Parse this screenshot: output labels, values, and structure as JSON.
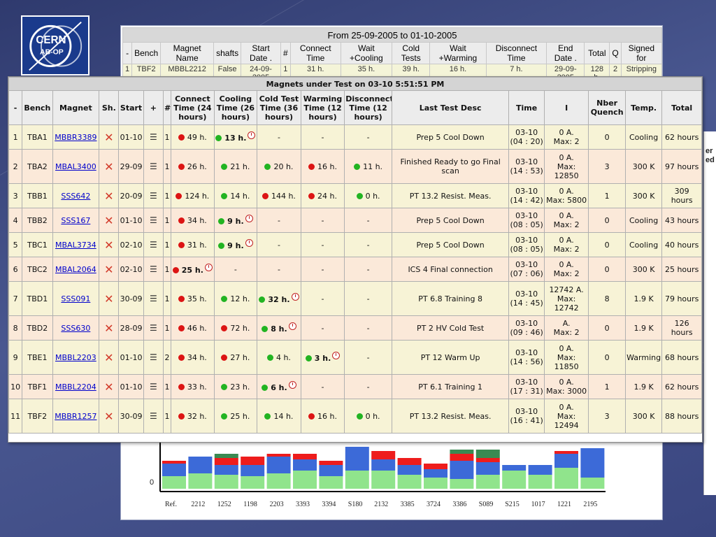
{
  "logo": {
    "line1": "CERN",
    "line2": "AB-OP"
  },
  "bg_table": {
    "title": "From 25-09-2005 to 01-10-2005",
    "headers": [
      "-",
      "Bench",
      "Magnet Name",
      "shafts",
      "Start Date .",
      "#",
      "Connect Time",
      "Wait +Cooling",
      "Cold Tests",
      "Wait +Warming",
      "Disconnect Time",
      "End Date .",
      "Total",
      "Q",
      "Signed for"
    ],
    "row": [
      "1",
      "TBF2",
      "MBBL2212",
      "False",
      "24-09-2005",
      "1",
      "31 h.",
      "35 h.",
      "39 h.",
      "16 h.",
      "7 h.",
      "29-09-2005",
      "128 h.",
      "2",
      "Stripping"
    ]
  },
  "right_window": {
    "line1": "er",
    "line2": "ed"
  },
  "bg_chart": {
    "zero_label": "0",
    "categories": [
      "Ref.",
      "2212",
      "1252",
      "1198",
      "2203",
      "3393",
      "3394",
      "S180",
      "2132",
      "3385",
      "3724",
      "3386",
      "S089",
      "S215",
      "1017",
      "1221",
      "2195"
    ]
  },
  "main": {
    "title": "Magnets under Test on 03-10 5:51:51 PM",
    "headers": {
      "idx": "-",
      "bench": "Bench",
      "magnet": "Magnet",
      "sh": "Sh.",
      "start": "Start",
      "plus": "+",
      "hash": "#",
      "connect": "Connect Time (24 hours)",
      "cooling": "Cooling Time (26 hours)",
      "coldtest": "Cold Test Time (36 hours)",
      "warming": "Warming Time (12 hours)",
      "disconnect": "Disconnect Time (12 hours)",
      "lasttest": "Last Test Desc",
      "time": "Time",
      "i": "I",
      "nber_quench": "Nber Quench",
      "temp": "Temp.",
      "total": "Total"
    },
    "icons": {
      "shaft": "x-mark-icon",
      "history": "history-icon",
      "status": "status-dot-icon",
      "clock": "clock-icon"
    },
    "colors": {
      "red": "#dc1414",
      "green": "#22b422"
    },
    "rows": [
      {
        "idx": "1",
        "bench": "TBA1",
        "magnet": "MBBR3389",
        "start": "01-10",
        "count": "1",
        "connect": {
          "status": "red",
          "text": "49 h."
        },
        "cooling": {
          "status": "green",
          "text": "13 h.",
          "current": true
        },
        "coldtest": {
          "text": "-"
        },
        "warming": {
          "text": "-"
        },
        "disconnect": {
          "text": "-"
        },
        "desc": "Prep 5 Cool Down",
        "time_date": "03-10",
        "time_hm": "(04 : 20)",
        "i_line1": "0 A.",
        "i_line2": "Max: 2",
        "quench": "0",
        "temp": "Cooling",
        "total": "62 hours"
      },
      {
        "idx": "2",
        "bench": "TBA2",
        "magnet": "MBAL3400",
        "start": "29-09",
        "count": "1",
        "connect": {
          "status": "red",
          "text": "26 h."
        },
        "cooling": {
          "status": "green",
          "text": "21 h."
        },
        "coldtest": {
          "status": "green",
          "text": "20 h."
        },
        "warming": {
          "status": "red",
          "text": "16 h."
        },
        "disconnect": {
          "status": "green",
          "text": "11 h."
        },
        "desc": "Finished Ready to go Final scan",
        "time_date": "03-10",
        "time_hm": "(14 : 53)",
        "i_line1": "0 A.",
        "i_line2": "Max:",
        "i_line3": "12850",
        "quench": "3",
        "temp": "300 K",
        "total": "97 hours"
      },
      {
        "idx": "3",
        "bench": "TBB1",
        "magnet": "SSS642",
        "start": "20-09",
        "count": "1",
        "connect": {
          "status": "red",
          "text": "124 h."
        },
        "cooling": {
          "status": "green",
          "text": "14 h."
        },
        "coldtest": {
          "status": "red",
          "text": "144 h."
        },
        "warming": {
          "status": "red",
          "text": "24 h."
        },
        "disconnect": {
          "status": "green",
          "text": "0 h."
        },
        "desc": "PT 13.2 Resist. Meas.",
        "time_date": "03-10",
        "time_hm": "(14 : 42)",
        "i_line1": "0 A.",
        "i_line2": "Max: 5800",
        "quench": "1",
        "temp": "300 K",
        "total": "309 hours"
      },
      {
        "idx": "4",
        "bench": "TBB2",
        "magnet": "SSS167",
        "start": "01-10",
        "count": "1",
        "connect": {
          "status": "red",
          "text": "34 h."
        },
        "cooling": {
          "status": "green",
          "text": "9 h.",
          "current": true
        },
        "coldtest": {
          "text": "-"
        },
        "warming": {
          "text": "-"
        },
        "disconnect": {
          "text": "-"
        },
        "desc": "Prep 5 Cool Down",
        "time_date": "03-10",
        "time_hm": "(08 : 05)",
        "i_line1": "0 A.",
        "i_line2": "Max: 2",
        "quench": "0",
        "temp": "Cooling",
        "total": "43 hours"
      },
      {
        "idx": "5",
        "bench": "TBC1",
        "magnet": "MBAL3734",
        "start": "02-10",
        "count": "1",
        "connect": {
          "status": "red",
          "text": "31 h."
        },
        "cooling": {
          "status": "green",
          "text": "9 h.",
          "current": true
        },
        "coldtest": {
          "text": "-"
        },
        "warming": {
          "text": "-"
        },
        "disconnect": {
          "text": "-"
        },
        "desc": "Prep 5 Cool Down",
        "time_date": "03-10",
        "time_hm": "(08 : 05)",
        "i_line1": "0 A.",
        "i_line2": "Max: 2",
        "quench": "0",
        "temp": "Cooling",
        "total": "40 hours"
      },
      {
        "idx": "6",
        "bench": "TBC2",
        "magnet": "MBAL2064",
        "start": "02-10",
        "count": "1",
        "connect": {
          "status": "red",
          "text": "25 h.",
          "current": true
        },
        "cooling": {
          "text": "-"
        },
        "coldtest": {
          "text": "-"
        },
        "warming": {
          "text": "-"
        },
        "disconnect": {
          "text": "-"
        },
        "desc": "ICS 4 Final connection",
        "time_date": "03-10",
        "time_hm": "(07 : 06)",
        "i_line1": "0 A.",
        "i_line2": "Max: 2",
        "quench": "0",
        "temp": "300 K",
        "total": "25 hours"
      },
      {
        "idx": "7",
        "bench": "TBD1",
        "magnet": "SSS091",
        "start": "30-09",
        "count": "1",
        "connect": {
          "status": "red",
          "text": "35 h."
        },
        "cooling": {
          "status": "green",
          "text": "12 h."
        },
        "coldtest": {
          "status": "green",
          "text": "32 h.",
          "current": true
        },
        "warming": {
          "text": "-"
        },
        "disconnect": {
          "text": "-"
        },
        "desc": "PT 6.8 Training 8",
        "time_date": "03-10",
        "time_hm": "(14 : 45)",
        "i_line1": "12742 A.",
        "i_line2": "Max:",
        "i_line3": "12742",
        "quench": "8",
        "temp": "1.9 K",
        "total": "79 hours"
      },
      {
        "idx": "8",
        "bench": "TBD2",
        "magnet": "SSS630",
        "start": "28-09",
        "count": "1",
        "connect": {
          "status": "red",
          "text": "46 h."
        },
        "cooling": {
          "status": "red",
          "text": "72 h."
        },
        "coldtest": {
          "status": "green",
          "text": "8 h.",
          "current": true
        },
        "warming": {
          "text": "-"
        },
        "disconnect": {
          "text": "-"
        },
        "desc": "PT 2 HV Cold Test",
        "time_date": "03-10",
        "time_hm": "(09 : 46)",
        "i_line1": "A.",
        "i_line2": "Max: 2",
        "quench": "0",
        "temp": "1.9 K",
        "total": "126 hours"
      },
      {
        "idx": "9",
        "bench": "TBE1",
        "magnet": "MBBL2203",
        "start": "01-10",
        "count": "2",
        "connect": {
          "status": "red",
          "text": "34 h."
        },
        "cooling": {
          "status": "red",
          "text": "27 h."
        },
        "coldtest": {
          "status": "green",
          "text": "4 h."
        },
        "warming": {
          "status": "green",
          "text": "3 h.",
          "current": true
        },
        "disconnect": {
          "text": "-"
        },
        "desc": "PT 12 Warm Up",
        "time_date": "03-10",
        "time_hm": "(14 : 56)",
        "i_line1": "0 A.",
        "i_line2": "Max:",
        "i_line3": "11850",
        "quench": "0",
        "temp": "Warming",
        "total": "68 hours"
      },
      {
        "idx": "10",
        "bench": "TBF1",
        "magnet": "MBBL2204",
        "start": "01-10",
        "count": "1",
        "connect": {
          "status": "red",
          "text": "33 h."
        },
        "cooling": {
          "status": "green",
          "text": "23 h."
        },
        "coldtest": {
          "status": "green",
          "text": "6 h.",
          "current": true
        },
        "warming": {
          "text": "-"
        },
        "disconnect": {
          "text": "-"
        },
        "desc": "PT 6.1 Training 1",
        "time_date": "03-10",
        "time_hm": "(17 : 31)",
        "i_line1": "0 A.",
        "i_line2": "Max: 3000",
        "quench": "1",
        "temp": "1.9 K",
        "total": "62 hours"
      },
      {
        "idx": "11",
        "bench": "TBF2",
        "magnet": "MBBR1257",
        "start": "30-09",
        "count": "1",
        "connect": {
          "status": "red",
          "text": "32 h."
        },
        "cooling": {
          "status": "green",
          "text": "25 h."
        },
        "coldtest": {
          "status": "green",
          "text": "14 h."
        },
        "warming": {
          "status": "red",
          "text": "16 h."
        },
        "disconnect": {
          "status": "green",
          "text": "0 h."
        },
        "desc": "PT 13.2 Resist. Meas.",
        "time_date": "03-10",
        "time_hm": "(16 : 41)",
        "i_line1": "0 A.",
        "i_line2": "Max:",
        "i_line3": "12494",
        "quench": "3",
        "temp": "300 K",
        "total": "88 hours"
      }
    ]
  }
}
